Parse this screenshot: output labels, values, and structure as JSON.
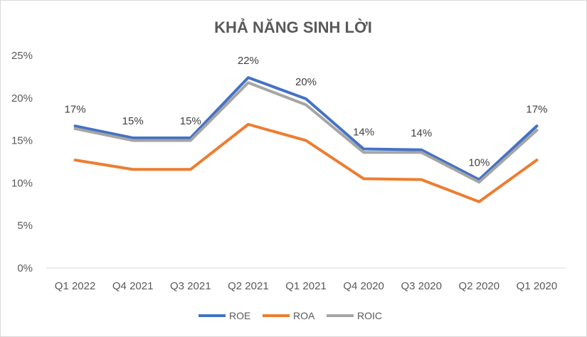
{
  "chart_data": {
    "type": "line",
    "title": "KHẢ NĂNG SINH LỜI",
    "xlabel": "",
    "ylabel": "",
    "categories": [
      "Q1 2022",
      "Q4 2021",
      "Q3 2021",
      "Q2 2021",
      "Q1 2021",
      "Q4 2020",
      "Q3 2020",
      "Q2 2020",
      "Q1 2020"
    ],
    "ylim": [
      0,
      25
    ],
    "yticks": [
      0,
      5,
      10,
      15,
      20,
      25
    ],
    "ytick_labels": [
      "0%",
      "5%",
      "10%",
      "15%",
      "20%",
      "25%"
    ],
    "grid": false,
    "legend": "bottom",
    "series": [
      {
        "name": "ROE",
        "color": "#4472c4",
        "values": [
          16.7,
          15.3,
          15.3,
          22.4,
          19.9,
          14.0,
          13.9,
          10.4,
          16.7
        ],
        "data_labels": [
          "17%",
          "15%",
          "15%",
          "22%",
          "20%",
          "14%",
          "14%",
          "10%",
          "17%"
        ]
      },
      {
        "name": "ROA",
        "color": "#ed7d31",
        "values": [
          12.7,
          11.6,
          11.6,
          16.9,
          15.0,
          10.5,
          10.4,
          7.8,
          12.7
        ]
      },
      {
        "name": "ROIC",
        "color": "#a5a5a5",
        "values": [
          16.4,
          15.0,
          15.0,
          21.8,
          19.2,
          13.6,
          13.6,
          10.1,
          16.2
        ]
      }
    ]
  }
}
